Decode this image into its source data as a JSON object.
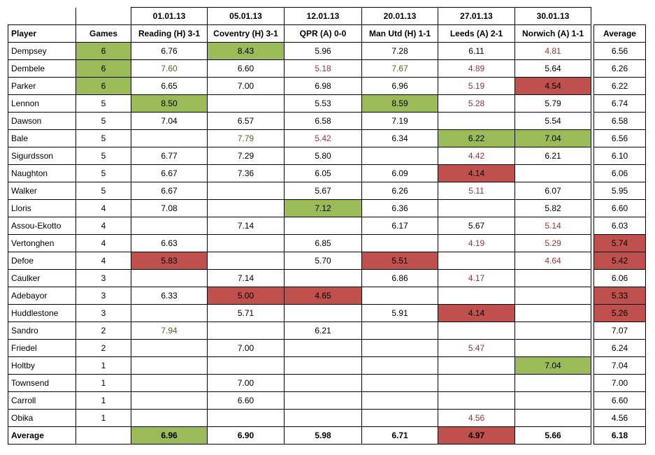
{
  "header": {
    "player_label": "Player",
    "games_label": "Games",
    "average_label": "Average"
  },
  "matches": [
    {
      "date": "01.01.13",
      "fixture": "Reading (H) 3-1"
    },
    {
      "date": "05.01.13",
      "fixture": "Coventry (H) 3-1"
    },
    {
      "date": "12.01.13",
      "fixture": "QPR (A) 0-0"
    },
    {
      "date": "20.01.13",
      "fixture": "Man Utd (H) 1-1"
    },
    {
      "date": "27.01.13",
      "fixture": "Leeds (A) 2-1"
    },
    {
      "date": "30.01.13",
      "fixture": "Norwich (A) 1-1"
    }
  ],
  "colors": {
    "green": "#9bbb59",
    "red": "#c0504d",
    "text_green": "#4f6228",
    "text_red": "#943634"
  },
  "players": [
    {
      "name": "Dempsey",
      "games": {
        "v": "6",
        "bg": "green"
      },
      "ratings": [
        {
          "v": "6.76"
        },
        {
          "v": "8.43",
          "bg": "green"
        },
        {
          "v": "5.96"
        },
        {
          "v": "7.28"
        },
        {
          "v": "6.11"
        },
        {
          "v": "4.81",
          "fg": "red"
        }
      ],
      "average": {
        "v": "6.56"
      }
    },
    {
      "name": "Dembele",
      "games": {
        "v": "6",
        "bg": "green"
      },
      "ratings": [
        {
          "v": "7.60",
          "fg": "green"
        },
        {
          "v": "6.60"
        },
        {
          "v": "5.18",
          "fg": "red"
        },
        {
          "v": "7.67",
          "fg": "green"
        },
        {
          "v": "4.89",
          "fg": "red"
        },
        {
          "v": "5.64"
        }
      ],
      "average": {
        "v": "6.26"
      }
    },
    {
      "name": "Parker",
      "games": {
        "v": "6",
        "bg": "green"
      },
      "ratings": [
        {
          "v": "6.65"
        },
        {
          "v": "7.00"
        },
        {
          "v": "6.98"
        },
        {
          "v": "6.96"
        },
        {
          "v": "5.19",
          "fg": "red"
        },
        {
          "v": "4.54",
          "bg": "red"
        }
      ],
      "average": {
        "v": "6.22"
      }
    },
    {
      "name": "Lennon",
      "games": {
        "v": "5"
      },
      "ratings": [
        {
          "v": "8.50",
          "bg": "green"
        },
        {
          "v": ""
        },
        {
          "v": "5.53"
        },
        {
          "v": "8.59",
          "bg": "green"
        },
        {
          "v": "5.28",
          "fg": "red"
        },
        {
          "v": "5.79"
        }
      ],
      "average": {
        "v": "6.74"
      }
    },
    {
      "name": "Dawson",
      "games": {
        "v": "5"
      },
      "ratings": [
        {
          "v": "7.04"
        },
        {
          "v": "6.57"
        },
        {
          "v": "6.58"
        },
        {
          "v": "7.19"
        },
        {
          "v": ""
        },
        {
          "v": "5.54"
        }
      ],
      "average": {
        "v": "6.58"
      }
    },
    {
      "name": "Bale",
      "games": {
        "v": "5"
      },
      "ratings": [
        {
          "v": ""
        },
        {
          "v": "7.79",
          "fg": "green"
        },
        {
          "v": "5.42",
          "fg": "red"
        },
        {
          "v": "6.34"
        },
        {
          "v": "6.22",
          "bg": "green"
        },
        {
          "v": "7.04",
          "bg": "green"
        }
      ],
      "average": {
        "v": "6.56"
      }
    },
    {
      "name": "Sigurdsson",
      "games": {
        "v": "5"
      },
      "ratings": [
        {
          "v": "6.77"
        },
        {
          "v": "7.29"
        },
        {
          "v": "5.80"
        },
        {
          "v": ""
        },
        {
          "v": "4.42",
          "fg": "red"
        },
        {
          "v": "6.21"
        }
      ],
      "average": {
        "v": "6.10"
      }
    },
    {
      "name": "Naughton",
      "games": {
        "v": "5"
      },
      "ratings": [
        {
          "v": "6.67"
        },
        {
          "v": "7.36"
        },
        {
          "v": "6.05"
        },
        {
          "v": "6.09"
        },
        {
          "v": "4.14",
          "bg": "red"
        },
        {
          "v": ""
        }
      ],
      "average": {
        "v": "6.06"
      }
    },
    {
      "name": "Walker",
      "games": {
        "v": "5"
      },
      "ratings": [
        {
          "v": "6.67"
        },
        {
          "v": ""
        },
        {
          "v": "5.67"
        },
        {
          "v": "6.26"
        },
        {
          "v": "5.11",
          "fg": "red"
        },
        {
          "v": "6.07"
        }
      ],
      "average": {
        "v": "5.95"
      }
    },
    {
      "name": "Lloris",
      "games": {
        "v": "4"
      },
      "ratings": [
        {
          "v": "7.08"
        },
        {
          "v": ""
        },
        {
          "v": "7.12",
          "bg": "green"
        },
        {
          "v": "6.36"
        },
        {
          "v": ""
        },
        {
          "v": "5.82"
        }
      ],
      "average": {
        "v": "6.60"
      }
    },
    {
      "name": "Assou-Ekotto",
      "games": {
        "v": "4"
      },
      "ratings": [
        {
          "v": ""
        },
        {
          "v": "7.14"
        },
        {
          "v": ""
        },
        {
          "v": "6.17"
        },
        {
          "v": "5.67"
        },
        {
          "v": "5.14",
          "fg": "red"
        }
      ],
      "average": {
        "v": "6.03"
      }
    },
    {
      "name": "Vertonghen",
      "games": {
        "v": "4"
      },
      "ratings": [
        {
          "v": "6.63"
        },
        {
          "v": ""
        },
        {
          "v": "6.85"
        },
        {
          "v": ""
        },
        {
          "v": "4.19",
          "fg": "red"
        },
        {
          "v": "5.29",
          "fg": "red"
        }
      ],
      "average": {
        "v": "5.74",
        "bg": "red"
      }
    },
    {
      "name": "Defoe",
      "games": {
        "v": "4"
      },
      "ratings": [
        {
          "v": "5.83",
          "bg": "red"
        },
        {
          "v": ""
        },
        {
          "v": "5.70"
        },
        {
          "v": "5.51",
          "bg": "red"
        },
        {
          "v": ""
        },
        {
          "v": "4.64",
          "fg": "red"
        }
      ],
      "average": {
        "v": "5.42",
        "bg": "red"
      }
    },
    {
      "name": "Caulker",
      "games": {
        "v": "3"
      },
      "ratings": [
        {
          "v": ""
        },
        {
          "v": "7.14"
        },
        {
          "v": ""
        },
        {
          "v": "6.86"
        },
        {
          "v": "4.17",
          "fg": "red"
        },
        {
          "v": ""
        }
      ],
      "average": {
        "v": "6.06"
      }
    },
    {
      "name": "Adebayor",
      "games": {
        "v": "3"
      },
      "ratings": [
        {
          "v": "6.33"
        },
        {
          "v": "5.00",
          "bg": "red"
        },
        {
          "v": "4.65",
          "bg": "red"
        },
        {
          "v": ""
        },
        {
          "v": ""
        },
        {
          "v": ""
        }
      ],
      "average": {
        "v": "5.33",
        "bg": "red"
      }
    },
    {
      "name": "Huddlestone",
      "games": {
        "v": "3"
      },
      "ratings": [
        {
          "v": ""
        },
        {
          "v": "5.71"
        },
        {
          "v": ""
        },
        {
          "v": "5.91"
        },
        {
          "v": "4.14",
          "bg": "red"
        },
        {
          "v": ""
        }
      ],
      "average": {
        "v": "5.26",
        "bg": "red"
      }
    },
    {
      "name": "Sandro",
      "games": {
        "v": "2"
      },
      "ratings": [
        {
          "v": "7.94",
          "fg": "green"
        },
        {
          "v": ""
        },
        {
          "v": "6.21"
        },
        {
          "v": ""
        },
        {
          "v": ""
        },
        {
          "v": ""
        }
      ],
      "average": {
        "v": "7.07"
      }
    },
    {
      "name": "Friedel",
      "games": {
        "v": "2"
      },
      "ratings": [
        {
          "v": ""
        },
        {
          "v": "7.00"
        },
        {
          "v": ""
        },
        {
          "v": ""
        },
        {
          "v": "5.47",
          "fg": "red"
        },
        {
          "v": ""
        }
      ],
      "average": {
        "v": "6.24"
      }
    },
    {
      "name": "Holtby",
      "games": {
        "v": "1"
      },
      "ratings": [
        {
          "v": ""
        },
        {
          "v": ""
        },
        {
          "v": ""
        },
        {
          "v": ""
        },
        {
          "v": ""
        },
        {
          "v": "7.04",
          "bg": "green"
        }
      ],
      "average": {
        "v": "7.04"
      }
    },
    {
      "name": "Townsend",
      "games": {
        "v": "1"
      },
      "ratings": [
        {
          "v": ""
        },
        {
          "v": "7.00"
        },
        {
          "v": ""
        },
        {
          "v": ""
        },
        {
          "v": ""
        },
        {
          "v": ""
        }
      ],
      "average": {
        "v": "7.00"
      }
    },
    {
      "name": "Carroll",
      "games": {
        "v": "1"
      },
      "ratings": [
        {
          "v": ""
        },
        {
          "v": "6.60"
        },
        {
          "v": ""
        },
        {
          "v": ""
        },
        {
          "v": ""
        },
        {
          "v": ""
        }
      ],
      "average": {
        "v": "6.60"
      }
    },
    {
      "name": "Obika",
      "games": {
        "v": "1"
      },
      "ratings": [
        {
          "v": ""
        },
        {
          "v": ""
        },
        {
          "v": ""
        },
        {
          "v": ""
        },
        {
          "v": "4.56",
          "fg": "red"
        },
        {
          "v": ""
        }
      ],
      "average": {
        "v": "4.56"
      }
    }
  ],
  "totals": {
    "label": "Average",
    "games": "",
    "ratings": [
      {
        "v": "6.96",
        "bg": "green"
      },
      {
        "v": "6.90"
      },
      {
        "v": "5.98"
      },
      {
        "v": "6.71"
      },
      {
        "v": "4.97",
        "bg": "red"
      },
      {
        "v": "5.66"
      }
    ],
    "average": {
      "v": "6.18"
    }
  }
}
